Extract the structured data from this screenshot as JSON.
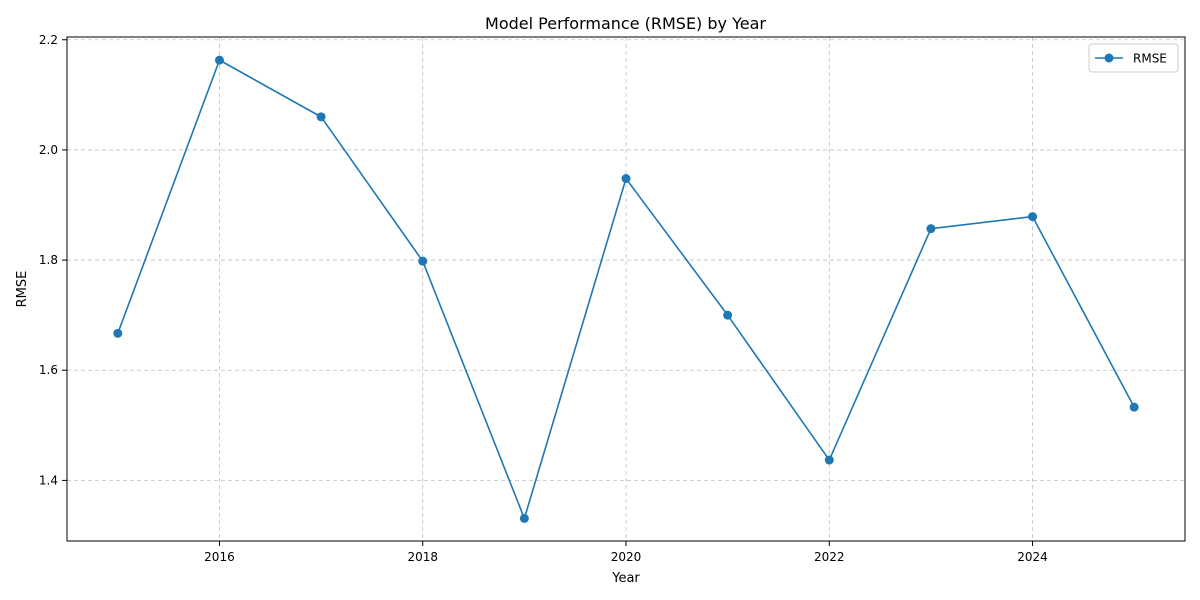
{
  "chart_data": {
    "type": "line",
    "title": "Model Performance (RMSE) by Year",
    "xlabel": "Year",
    "ylabel": "RMSE",
    "x": [
      2015,
      2016,
      2017,
      2018,
      2019,
      2020,
      2021,
      2022,
      2023,
      2024,
      2025
    ],
    "series": [
      {
        "name": "RMSE",
        "color": "#1f77b4",
        "values": [
          1.667,
          2.163,
          2.06,
          1.798,
          1.331,
          1.948,
          1.7,
          1.437,
          1.857,
          1.879,
          1.533
        ]
      }
    ],
    "xlim": [
      2014.5,
      2025.5
    ],
    "ylim": [
      1.29,
      2.205
    ],
    "xticks": [
      2016,
      2018,
      2020,
      2022,
      2024
    ],
    "xtick_labels": [
      "2016",
      "2018",
      "2020",
      "2022",
      "2024"
    ],
    "yticks": [
      1.4,
      1.6,
      1.8,
      2.0,
      2.2
    ],
    "ytick_labels": [
      "1.4",
      "1.6",
      "1.8",
      "2.0",
      "2.2"
    ],
    "grid": true,
    "legend_position": "top-right"
  }
}
